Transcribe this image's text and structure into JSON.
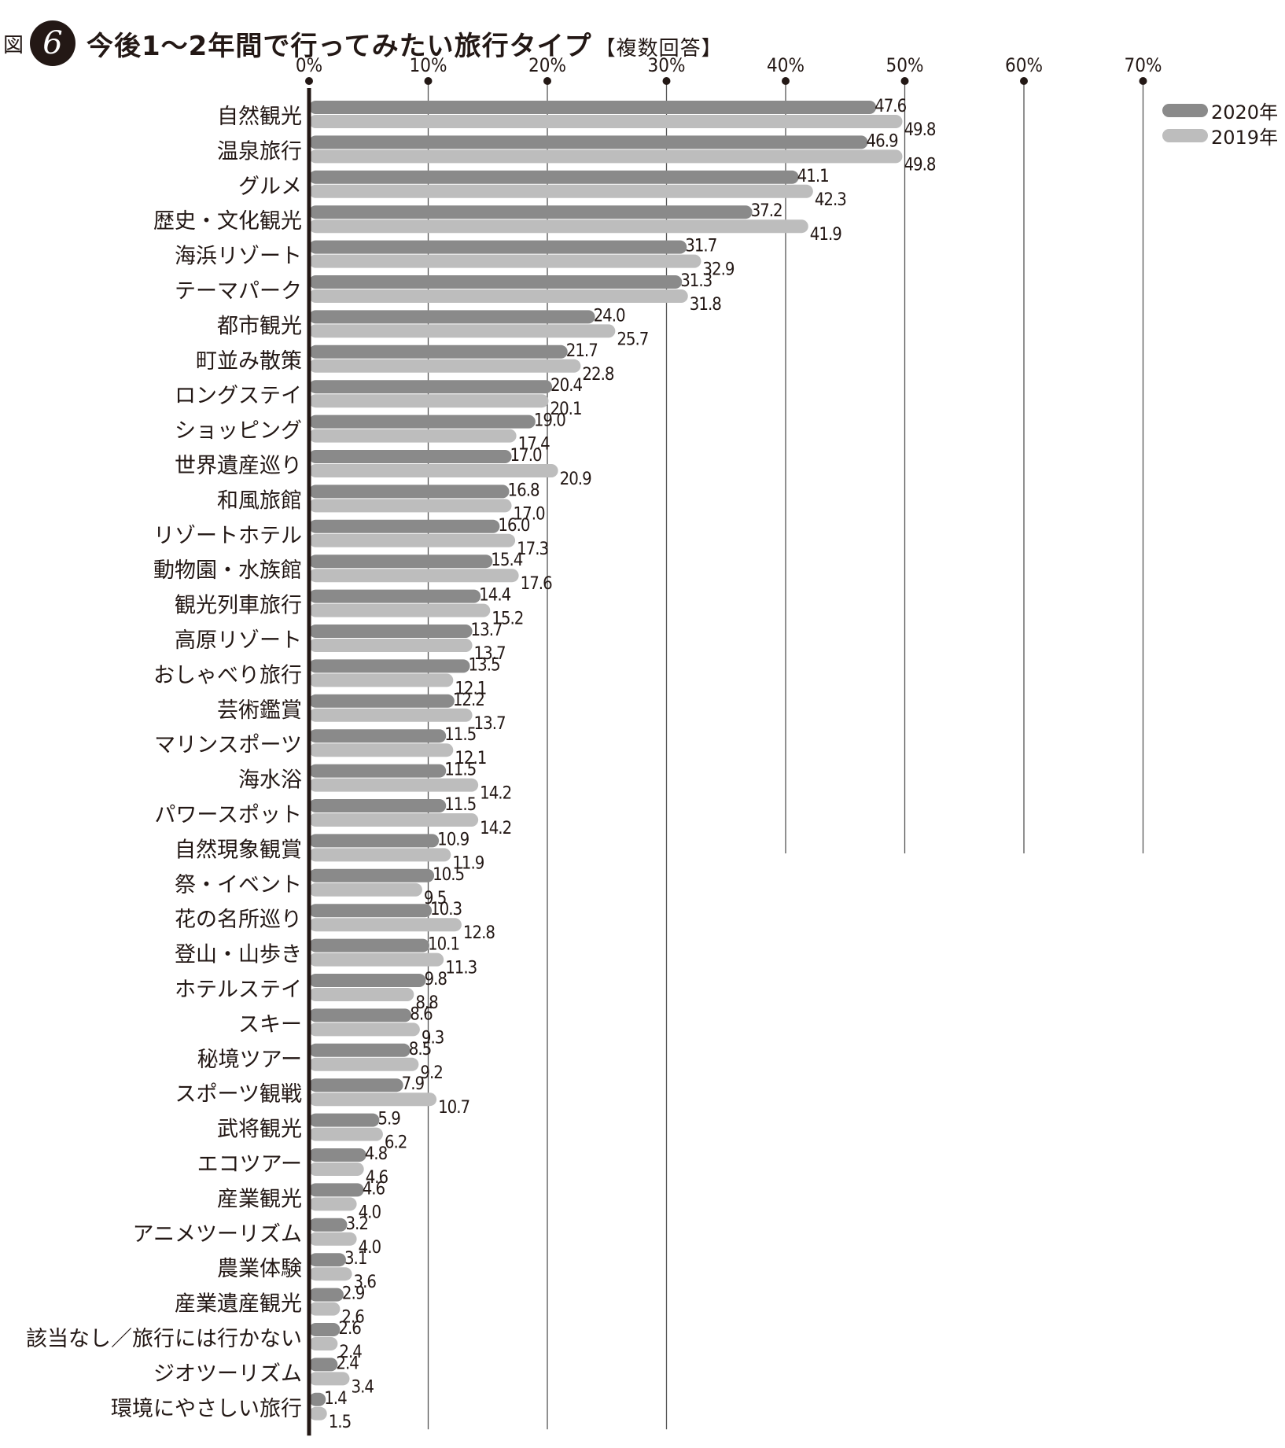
{
  "header": {
    "figure_label": "図",
    "figure_number": "6",
    "title": "今後1～2年間で行ってみたい旅行タイプ",
    "note": "【複数回答】"
  },
  "colors": {
    "series_2020": "#8a8a8a",
    "series_2019": "#bdbdbd",
    "axis": "#231815",
    "grid": "#555555"
  },
  "chart_data": {
    "type": "bar",
    "orientation": "horizontal",
    "title": "今後1～2年間で行ってみたい旅行タイプ【複数回答】",
    "xlim": [
      0,
      70
    ],
    "x_ticks": [
      "0%",
      "10%",
      "20%",
      "30%",
      "40%",
      "50%",
      "60%",
      "70%"
    ],
    "grid": true,
    "legend_position": "top-right",
    "categories": [
      "自然観光",
      "温泉旅行",
      "グルメ",
      "歴史・文化観光",
      "海浜リゾート",
      "テーマパーク",
      "都市観光",
      "町並み散策",
      "ロングステイ",
      "ショッピング",
      "世界遺産巡り",
      "和風旅館",
      "リゾートホテル",
      "動物園・水族館",
      "観光列車旅行",
      "高原リゾート",
      "おしゃべり旅行",
      "芸術鑑賞",
      "マリンスポーツ",
      "海水浴",
      "パワースポット",
      "自然現象観賞",
      "祭・イベント",
      "花の名所巡り",
      "登山・山歩き",
      "ホテルステイ",
      "スキー",
      "秘境ツアー",
      "スポーツ観戦",
      "武将観光",
      "エコツアー",
      "産業観光",
      "アニメツーリズム",
      "農業体験",
      "産業遺産観光",
      "該当なし／旅行には行かない",
      "ジオツーリズム",
      "環境にやさしい旅行"
    ],
    "series": [
      {
        "name": "2020年",
        "values": [
          47.6,
          46.9,
          41.1,
          37.2,
          31.7,
          31.3,
          24.0,
          21.7,
          20.4,
          19.0,
          17.0,
          16.8,
          16.0,
          15.4,
          14.4,
          13.7,
          13.5,
          12.2,
          11.5,
          11.5,
          11.5,
          10.9,
          10.5,
          10.3,
          10.1,
          9.8,
          8.6,
          8.5,
          7.9,
          5.9,
          4.8,
          4.6,
          3.2,
          3.1,
          2.9,
          2.6,
          2.4,
          1.4
        ]
      },
      {
        "name": "2019年",
        "values": [
          49.8,
          49.8,
          42.3,
          41.9,
          32.9,
          31.8,
          25.7,
          22.8,
          20.1,
          17.4,
          20.9,
          17.0,
          17.3,
          17.6,
          15.2,
          13.7,
          12.1,
          13.7,
          12.1,
          14.2,
          14.2,
          11.9,
          9.5,
          12.8,
          11.3,
          8.8,
          9.3,
          9.2,
          10.7,
          6.2,
          4.6,
          4.0,
          4.0,
          3.6,
          2.6,
          2.4,
          3.4,
          1.5
        ]
      }
    ]
  }
}
